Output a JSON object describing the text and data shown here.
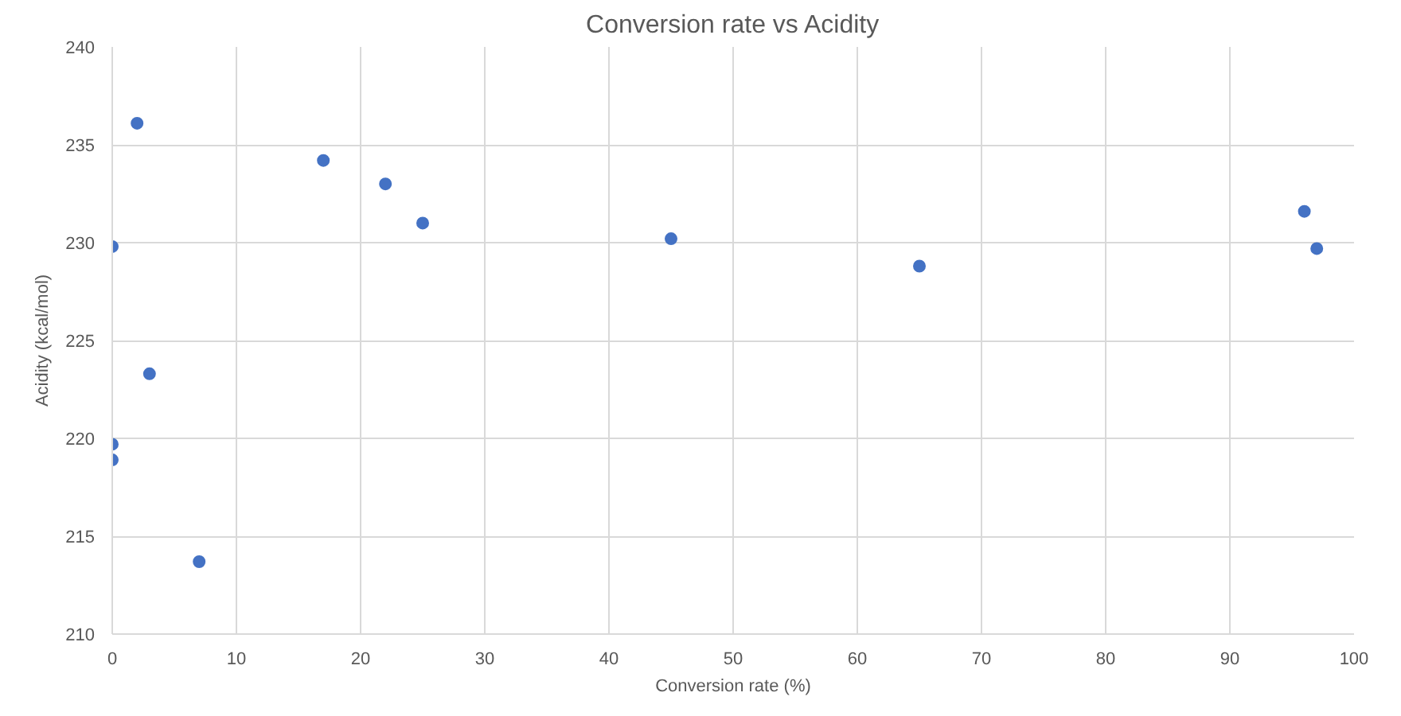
{
  "chart_data": {
    "type": "scatter",
    "title": "Conversion rate vs Acidity",
    "xlabel": "Conversion rate (%)",
    "ylabel": "Acidity (kcal/mol)",
    "x": [
      0,
      0,
      0,
      2,
      3,
      7,
      17,
      22,
      25,
      45,
      65,
      96,
      97
    ],
    "series": [
      {
        "color": "#4472c4",
        "values": [
          229.8,
          219.7,
          218.9,
          236.1,
          223.3,
          213.7,
          234.2,
          233.0,
          231.0,
          230.2,
          228.8,
          231.6,
          229.7
        ]
      }
    ],
    "xlim": [
      0,
      100
    ],
    "xticks": [
      0,
      10,
      20,
      30,
      40,
      50,
      60,
      70,
      80,
      90,
      100
    ],
    "ylim": [
      210,
      240
    ],
    "yticks": [
      210,
      215,
      220,
      225,
      230,
      235,
      240
    ],
    "grid": true,
    "marker": "circle"
  }
}
